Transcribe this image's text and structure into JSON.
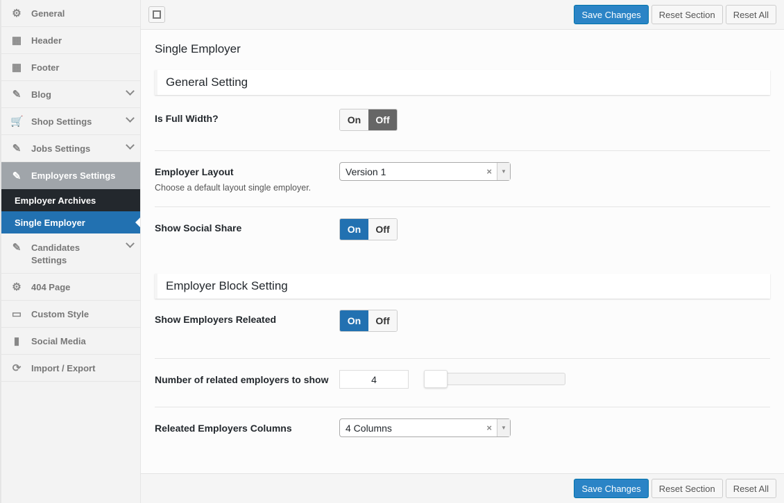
{
  "sidebar": {
    "items": [
      {
        "label": "General",
        "icon": "gears-icon",
        "glyph": "⚙"
      },
      {
        "label": "Header",
        "icon": "header-layout-icon",
        "glyph": "▦"
      },
      {
        "label": "Footer",
        "icon": "footer-layout-icon",
        "glyph": "▦"
      },
      {
        "label": "Blog",
        "icon": "pencil-icon",
        "glyph": "✎"
      },
      {
        "label": "Shop Settings",
        "icon": "cart-icon",
        "glyph": "🛒"
      },
      {
        "label": "Jobs Settings",
        "icon": "pencil-icon",
        "glyph": "✎"
      },
      {
        "label": "Employers Settings",
        "icon": "pencil-icon",
        "glyph": "✎"
      },
      {
        "label": "Candidates Settings",
        "icon": "pencil-icon",
        "glyph": "✎"
      },
      {
        "label": "404 Page",
        "icon": "gear-icon",
        "glyph": "⚙"
      },
      {
        "label": "Custom Style",
        "icon": "css-icon",
        "glyph": "▭"
      },
      {
        "label": "Social Media",
        "icon": "document-icon",
        "glyph": "▮"
      },
      {
        "label": "Import / Export",
        "icon": "refresh-icon",
        "glyph": "⟳"
      }
    ],
    "subitems": [
      {
        "label": "Employer Archives"
      },
      {
        "label": "Single Employer"
      }
    ]
  },
  "toolbar": {
    "save": "Save Changes",
    "reset_section": "Reset Section",
    "reset_all": "Reset All"
  },
  "page_title": "Single Employer",
  "sections": [
    {
      "title": "General Setting"
    },
    {
      "title": "Employer Block Setting"
    }
  ],
  "fields": {
    "full_width": {
      "label": "Is Full Width?",
      "on": "On",
      "off": "Off",
      "value": "Off"
    },
    "layout": {
      "label": "Employer Layout",
      "desc": "Choose a default layout single employer.",
      "value": "Version 1"
    },
    "social": {
      "label": "Show Social Share",
      "on": "On",
      "off": "Off",
      "value": "On"
    },
    "related": {
      "label": "Show Employers Releated",
      "on": "On",
      "off": "Off",
      "value": "On"
    },
    "number": {
      "label": "Number of related employers to show",
      "value": "4"
    },
    "columns": {
      "label": "Releated Employers Columns",
      "value": "4 Columns"
    }
  },
  "colors": {
    "accent": "#2271b1",
    "primary_button": "#2b84c6"
  }
}
